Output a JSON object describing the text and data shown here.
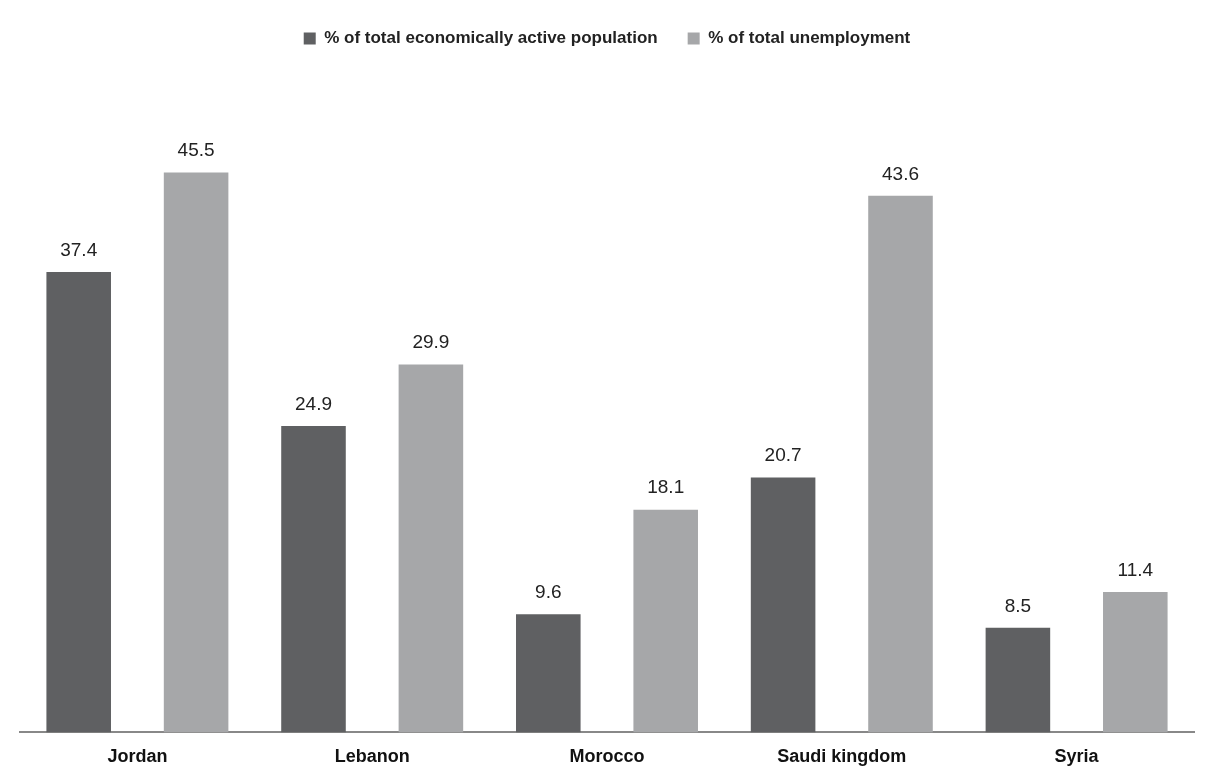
{
  "chart_data": {
    "type": "bar",
    "categories": [
      "Jordan",
      "Lebanon",
      "Morocco",
      "Saudi kingdom",
      "Syria"
    ],
    "series": [
      {
        "name": "% of total economically active population",
        "color": "#5f6062",
        "values": [
          37.4,
          24.9,
          9.6,
          20.7,
          8.5
        ]
      },
      {
        "name": "% of total unemployment",
        "color": "#a6a7a9",
        "values": [
          45.5,
          29.9,
          18.1,
          43.6,
          11.4
        ]
      }
    ],
    "data_labels": true,
    "legend": "top",
    "grid": false
  }
}
